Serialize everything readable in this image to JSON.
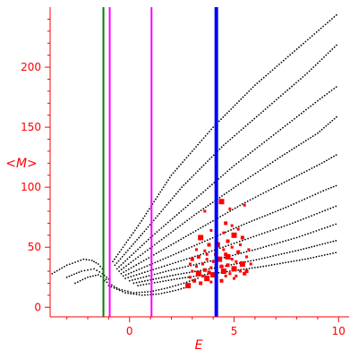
{
  "chart_data": {
    "type": "scatter",
    "title": "",
    "xlabel": "E",
    "ylabel": "<M>",
    "xlim": [
      -3.8,
      10.5
    ],
    "ylim": [
      -8,
      250
    ],
    "x_ticks": [
      0,
      5,
      10
    ],
    "y_ticks": [
      0,
      50,
      100,
      150,
      200
    ],
    "x_tick_labels": [
      "0",
      "5",
      "10"
    ],
    "y_tick_labels": [
      "0",
      "50",
      "100",
      "150",
      "200"
    ],
    "axis_color": "#ff0000",
    "grid": false,
    "legend": "none",
    "vertical_lines": [
      {
        "x": -1.25,
        "color": "#008000",
        "width": 2
      },
      {
        "x": -0.95,
        "color": "#ff00ff",
        "width": 2
      },
      {
        "x": 1.05,
        "color": "#ff00ff",
        "width": 2
      },
      {
        "x": 4.15,
        "color": "#0000ff",
        "width": 4
      }
    ],
    "series": [
      {
        "color": "#000000",
        "marker": "small-dot",
        "curves": [
          {
            "kind": "left-arc",
            "points": [
              [
                -3.7,
                28
              ],
              [
                -3.0,
                35
              ],
              [
                -2.2,
                40
              ],
              [
                -1.8,
                39
              ],
              [
                -1.5,
                36
              ],
              [
                -1.2,
                30
              ]
            ]
          },
          {
            "kind": "left-arc",
            "points": [
              [
                -3.0,
                25
              ],
              [
                -2.3,
                30
              ],
              [
                -1.7,
                32
              ],
              [
                -1.3,
                28
              ],
              [
                -0.9,
                22
              ]
            ]
          },
          {
            "kind": "left-arc",
            "points": [
              [
                -2.6,
                20
              ],
              [
                -2.0,
                25
              ],
              [
                -1.5,
                27
              ],
              [
                -1.0,
                22
              ]
            ]
          },
          {
            "kind": "fan",
            "points": [
              [
                -0.8,
                38
              ],
              [
                0.5,
                70
              ],
              [
                2.0,
                110
              ],
              [
                4.0,
                150
              ],
              [
                6.0,
                185
              ],
              [
                8.0,
                215
              ],
              [
                10.0,
                245
              ]
            ]
          },
          {
            "kind": "fan",
            "points": [
              [
                -0.7,
                35
              ],
              [
                0.8,
                65
              ],
              [
                2.5,
                100
              ],
              [
                4.5,
                135
              ],
              [
                6.5,
                165
              ],
              [
                8.5,
                195
              ],
              [
                10.0,
                220
              ]
            ]
          },
          {
            "kind": "fan",
            "points": [
              [
                -0.6,
                32
              ],
              [
                1.0,
                58
              ],
              [
                3.0,
                88
              ],
              [
                5.0,
                118
              ],
              [
                7.0,
                145
              ],
              [
                9.0,
                172
              ],
              [
                10.0,
                185
              ]
            ]
          },
          {
            "kind": "fan",
            "points": [
              [
                -0.5,
                30
              ],
              [
                1.2,
                52
              ],
              [
                3.2,
                78
              ],
              [
                5.2,
                102
              ],
              [
                7.2,
                125
              ],
              [
                9.0,
                145
              ],
              [
                10.0,
                160
              ]
            ]
          },
          {
            "kind": "fan",
            "points": [
              [
                -0.4,
                28
              ],
              [
                1.4,
                46
              ],
              [
                3.4,
                66
              ],
              [
                5.4,
                86
              ],
              [
                7.4,
                104
              ],
              [
                9.2,
                120
              ],
              [
                10.0,
                128
              ]
            ]
          },
          {
            "kind": "fan",
            "points": [
              [
                -0.3,
                26
              ],
              [
                1.6,
                40
              ],
              [
                3.6,
                55
              ],
              [
                5.6,
                70
              ],
              [
                7.6,
                84
              ],
              [
                9.4,
                98
              ],
              [
                10.0,
                102
              ]
            ]
          },
          {
            "kind": "fan",
            "points": [
              [
                -0.2,
                24
              ],
              [
                1.8,
                35
              ],
              [
                3.8,
                46
              ],
              [
                5.8,
                58
              ],
              [
                7.8,
                70
              ],
              [
                10.0,
                85
              ]
            ]
          },
          {
            "kind": "fan",
            "points": [
              [
                0.0,
                22
              ],
              [
                2.0,
                31
              ],
              [
                4.0,
                39
              ],
              [
                6.0,
                48
              ],
              [
                8.0,
                58
              ],
              [
                10.0,
                70
              ]
            ]
          },
          {
            "kind": "fan",
            "points": [
              [
                0.2,
                20
              ],
              [
                2.2,
                27
              ],
              [
                4.2,
                33
              ],
              [
                6.2,
                40
              ],
              [
                8.2,
                48
              ],
              [
                10.0,
                56
              ]
            ]
          },
          {
            "kind": "fan",
            "points": [
              [
                0.4,
                18
              ],
              [
                2.4,
                24
              ],
              [
                4.4,
                29
              ],
              [
                6.4,
                34
              ],
              [
                8.4,
                40
              ],
              [
                10.0,
                46
              ]
            ]
          },
          {
            "kind": "low-band",
            "points": [
              [
                -1.2,
                22
              ],
              [
                -0.5,
                15
              ],
              [
                0.2,
                12
              ],
              [
                1.0,
                13
              ],
              [
                1.8,
                16
              ],
              [
                2.6,
                20
              ],
              [
                3.4,
                25
              ]
            ]
          },
          {
            "kind": "low-band",
            "points": [
              [
                -1.0,
                18
              ],
              [
                -0.2,
                12
              ],
              [
                0.6,
                10
              ],
              [
                1.4,
                11
              ],
              [
                2.2,
                14
              ],
              [
                3.0,
                18
              ]
            ]
          }
        ]
      },
      {
        "color": "#ff0000",
        "marker": "square",
        "points": [
          [
            2.8,
            18
          ],
          [
            2.9,
            25
          ],
          [
            3.0,
            30
          ],
          [
            3.1,
            22
          ],
          [
            3.2,
            34
          ],
          [
            3.3,
            28
          ],
          [
            3.4,
            20
          ],
          [
            3.5,
            36
          ],
          [
            3.5,
            26
          ],
          [
            3.6,
            31
          ],
          [
            3.7,
            24
          ],
          [
            3.7,
            40
          ],
          [
            3.8,
            29
          ],
          [
            3.9,
            33
          ],
          [
            3.9,
            21
          ],
          [
            4.0,
            27
          ],
          [
            4.0,
            38
          ],
          [
            4.1,
            44
          ],
          [
            3.3,
            42
          ],
          [
            3.6,
            47
          ],
          [
            3.4,
            58
          ],
          [
            3.8,
            52
          ],
          [
            3.6,
            80
          ],
          [
            3.9,
            64
          ],
          [
            4.4,
            22
          ],
          [
            4.5,
            30
          ],
          [
            4.6,
            26
          ],
          [
            4.7,
            35
          ],
          [
            4.8,
            28
          ],
          [
            4.9,
            40
          ],
          [
            5.0,
            32
          ],
          [
            5.0,
            24
          ],
          [
            5.1,
            38
          ],
          [
            5.2,
            46
          ],
          [
            5.3,
            30
          ],
          [
            5.4,
            36
          ],
          [
            5.5,
            28
          ],
          [
            5.6,
            42
          ],
          [
            4.5,
            48
          ],
          [
            4.7,
            55
          ],
          [
            5.0,
            60
          ],
          [
            5.3,
            52
          ],
          [
            4.6,
            70
          ],
          [
            4.9,
            68
          ],
          [
            5.2,
            65
          ],
          [
            4.4,
            88
          ],
          [
            4.8,
            82
          ],
          [
            5.5,
            85
          ],
          [
            5.4,
            58
          ],
          [
            5.7,
            48
          ],
          [
            4.3,
            40
          ],
          [
            4.6,
            44
          ],
          [
            4.9,
            50
          ],
          [
            5.1,
            26
          ],
          [
            4.4,
            34
          ],
          [
            4.7,
            42
          ],
          [
            3.2,
            48
          ],
          [
            3.0,
            40
          ],
          [
            2.9,
            36
          ],
          [
            3.7,
            44
          ],
          [
            4.2,
            52
          ],
          [
            4.5,
            62
          ],
          [
            5.8,
            36
          ],
          [
            5.6,
            30
          ]
        ]
      }
    ]
  }
}
